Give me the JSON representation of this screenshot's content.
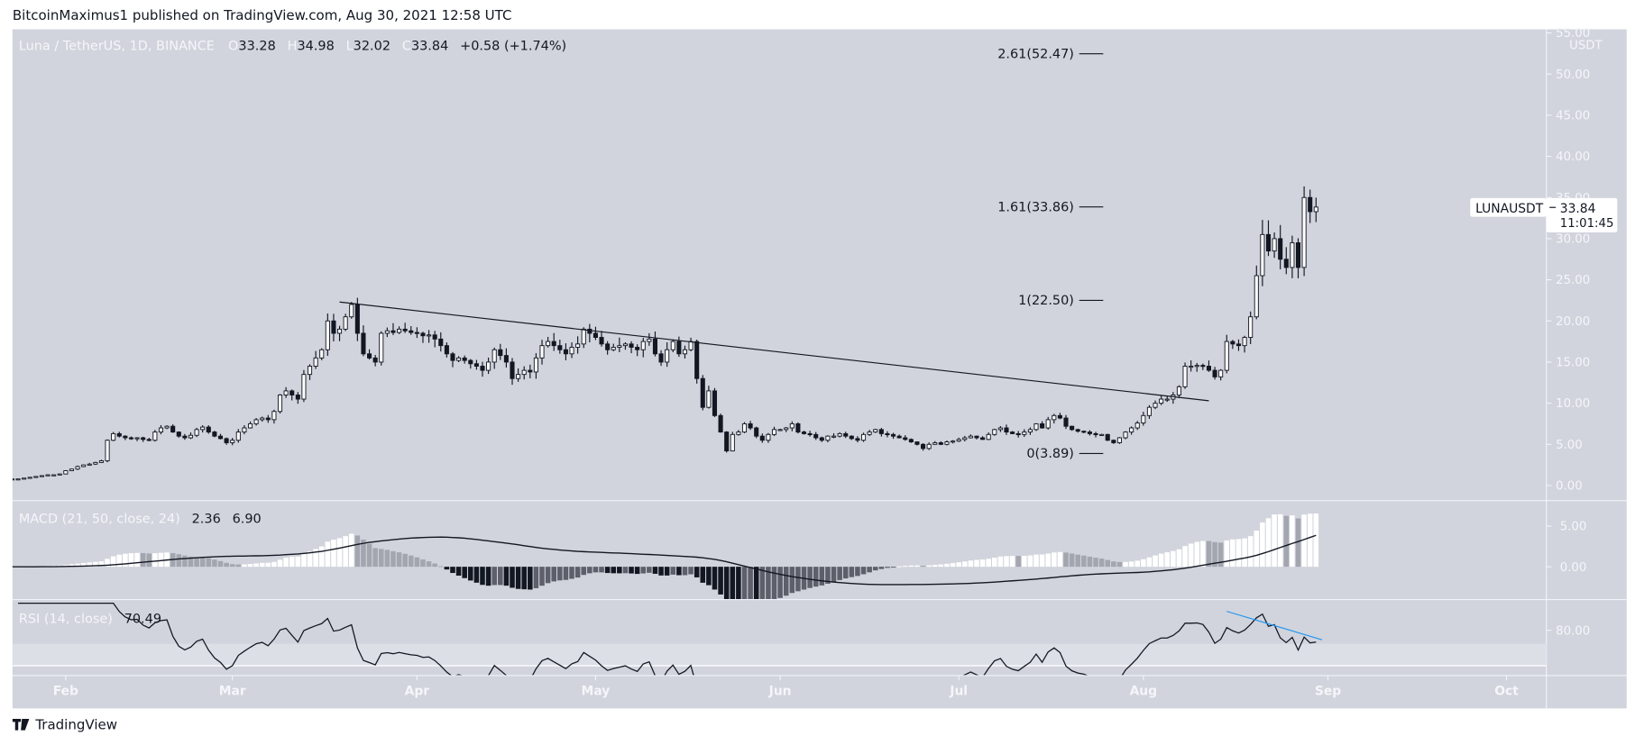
{
  "header": {
    "published": "BitcoinMaximus1 published on TradingView.com, Aug 30, 2021 12:58 UTC"
  },
  "legend": {
    "symbol": "Luna / TetherUS, 1D, BINANCE",
    "o_label": "O",
    "o": "33.28",
    "h_label": "H",
    "h": "34.98",
    "l_label": "L",
    "l": "32.02",
    "c_label": "C",
    "c": "33.84",
    "change": "+0.58 (+1.74%)"
  },
  "macd_legend": {
    "label": "MACD (21, 50, close, 24)",
    "macd": "2.36",
    "signal": "6.90"
  },
  "rsi_legend": {
    "label": "RSI (14, close)",
    "value": "70.49"
  },
  "price_axis": {
    "unit": "USDT",
    "ticks": [
      "0.00",
      "5.00",
      "10.00",
      "15.00",
      "20.00",
      "25.00",
      "30.00",
      "35.00",
      "40.00",
      "45.00",
      "50.00",
      "55.00"
    ]
  },
  "macd_axis": {
    "ticks": [
      "0.00",
      "5.00"
    ]
  },
  "rsi_axis": {
    "ticks": [
      "80.00"
    ]
  },
  "price_label": {
    "symbol": "LUNAUSDT",
    "price": "33.84",
    "countdown": "11:01:45"
  },
  "time_axis": {
    "labels": [
      "Feb",
      "Mar",
      "Apr",
      "May",
      "Jun",
      "Jul",
      "Aug",
      "Sep",
      "Oct"
    ]
  },
  "fib_levels": [
    {
      "label": "2.61(52.47)",
      "value": 52.47
    },
    {
      "label": "1.61(33.86)",
      "value": 33.86
    },
    {
      "label": "1(22.50)",
      "value": 22.5
    },
    {
      "label": "0(3.89)",
      "value": 3.89
    }
  ],
  "watermark": {
    "brand": "TradingView"
  },
  "colors": {
    "pane_bg": "#d1d4dc",
    "candle_up": "#ffffff",
    "candle_down": "#131722",
    "hist_pos_up": "#ffffff",
    "hist_pos_down": "#a3a6af",
    "hist_neg_down": "#131722",
    "hist_neg_up": "#5d606b",
    "rsi_divergence": "#2196f3"
  },
  "chart_data": {
    "type": "candlestick",
    "symbol": "LUNAUSDT",
    "interval": "1D",
    "ylim": [
      0,
      55
    ],
    "y_unit": "USDT",
    "indicators": [
      "MACD (21, 50, close, 24)",
      "RSI (14, close)"
    ],
    "last_bar": {
      "date": "2021-08-30",
      "open": 33.28,
      "high": 34.98,
      "low": 32.02,
      "close": 33.84
    },
    "daily_closes": [
      {
        "month": "2021-01",
        "first_day": 23,
        "closes": [
          0.8,
          0.8,
          0.9,
          1.0,
          1.1,
          1.2,
          1.3,
          1.3,
          1.4
        ]
      },
      {
        "month": "2021-02",
        "first_day": 1,
        "closes": [
          1.8,
          2.0,
          2.3,
          2.5,
          2.6,
          2.8,
          3.0,
          5.5,
          6.3,
          6.0,
          5.8,
          5.7,
          5.8,
          5.6,
          5.5,
          6.5,
          7.0,
          7.2,
          6.5,
          6.0,
          5.8,
          6.1,
          6.8,
          7.1,
          6.5,
          6.0,
          5.7,
          5.2
        ]
      },
      {
        "month": "2021-03",
        "first_day": 1,
        "closes": [
          5.5,
          6.5,
          7.0,
          7.5,
          8.0,
          8.2,
          8.0,
          9.0,
          11.0,
          11.5,
          11.0,
          10.5,
          13.5,
          14.5,
          15.5,
          16.5,
          20.0,
          18.5,
          19.0,
          20.5,
          22.0,
          18.5,
          16.0,
          15.5,
          15.0,
          18.5,
          18.8,
          18.6,
          19.0,
          18.8,
          18.6
        ]
      },
      {
        "month": "2021-04",
        "first_day": 1,
        "closes": [
          18.5,
          18.2,
          18.3,
          17.8,
          17.0,
          16.0,
          15.2,
          15.5,
          15.2,
          14.8,
          14.5,
          14.0,
          15.0,
          16.5,
          15.8,
          15.0,
          13.0,
          13.5,
          14.0,
          13.8,
          15.5,
          17.0,
          17.5,
          17.0,
          16.5,
          16.0,
          16.8,
          17.2,
          19.0,
          18.5
        ]
      },
      {
        "month": "2021-05",
        "first_day": 1,
        "closes": [
          18.0,
          17.2,
          16.5,
          16.8,
          17.0,
          17.2,
          16.8,
          16.5,
          17.5,
          17.8,
          16.0,
          15.0,
          16.5,
          17.5,
          16.0,
          16.5,
          17.5,
          13.0,
          9.5,
          11.5,
          8.5,
          6.5,
          4.2,
          6.2,
          6.5,
          7.5,
          7.0,
          6.0,
          5.5,
          6.2,
          6.8
        ]
      },
      {
        "month": "2021-06",
        "first_day": 1,
        "closes": [
          6.8,
          7.0,
          7.5,
          6.5,
          6.3,
          6.2,
          5.8,
          5.5,
          6.0,
          6.0,
          6.3,
          6.0,
          5.7,
          5.5,
          6.2,
          6.5,
          6.8,
          6.3,
          6.2,
          6.0,
          5.8,
          5.6,
          5.3,
          5.0,
          4.5,
          5.0,
          5.2,
          5.0,
          5.3,
          5.4
        ]
      },
      {
        "month": "2021-07",
        "first_day": 1,
        "closes": [
          5.6,
          5.8,
          6.0,
          5.8,
          5.6,
          6.2,
          6.8,
          7.0,
          6.5,
          6.3,
          6.2,
          6.5,
          6.8,
          7.5,
          7.0,
          8.0,
          8.5,
          8.2,
          7.2,
          6.8,
          6.6,
          6.5,
          6.3,
          6.2,
          6.2,
          5.5,
          5.2,
          5.8,
          6.5,
          7.0,
          7.6
        ]
      },
      {
        "month": "2021-08",
        "first_day": 1,
        "closes": [
          8.5,
          9.5,
          10.0,
          10.5,
          10.5,
          11.0,
          12.0,
          14.5,
          14.5,
          14.6,
          14.5,
          14.0,
          13.2,
          14.0,
          17.5,
          17.2,
          17.0,
          18.0,
          20.5,
          25.5,
          30.5,
          28.5,
          30.0,
          27.5,
          26.5,
          29.5,
          26.5,
          35.0,
          33.28,
          33.84
        ]
      }
    ],
    "trendline": {
      "from": {
        "date": "2021-03-19",
        "value": 22.3
      },
      "to": {
        "date": "2021-08-12",
        "value": 10.3
      }
    },
    "rsi_divergence_line": {
      "from": {
        "date": "2021-08-15",
        "value": 94
      },
      "to": {
        "date": "2021-08-31",
        "value": 73
      }
    }
  }
}
